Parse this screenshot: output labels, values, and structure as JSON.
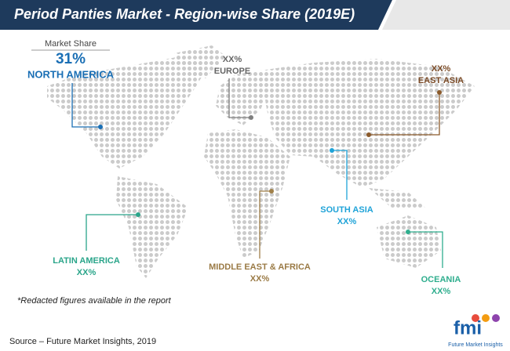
{
  "header": {
    "title": "Period Panties Market - Region-wise Share (2019E)"
  },
  "highlight": {
    "caption": "Market Share",
    "value": "31%",
    "region": "NORTH AMERICA"
  },
  "regions": [
    {
      "name": "EUROPE",
      "value": "XX%"
    },
    {
      "name": "EAST ASIA",
      "value": "XX%"
    },
    {
      "name": "SOUTH ASIA",
      "value": "XX%"
    },
    {
      "name": "MIDDLE EAST & AFRICA",
      "value": "XX%"
    },
    {
      "name": "LATIN AMERICA",
      "value": "XX%"
    },
    {
      "name": "OCEANIA",
      "value": "XX%"
    }
  ],
  "footnote": "*Redacted figures available in the report",
  "source": "Source – Future Market Insights, 2019",
  "logo": {
    "mark": "fmi",
    "name": "Future Market Insights"
  }
}
